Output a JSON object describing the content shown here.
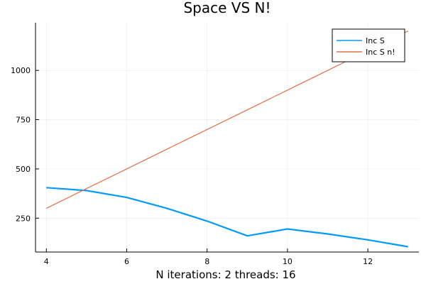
{
  "chart_data": {
    "type": "line",
    "title": "Space VS N!",
    "xlabel": "N iterations: 2 threads: 16",
    "ylabel": "",
    "x": [
      4,
      5,
      6,
      7,
      8,
      9,
      10,
      11,
      12,
      13
    ],
    "xlim": [
      3.73,
      13.27
    ],
    "ylim": [
      78,
      1242
    ],
    "xticks": [
      4,
      6,
      8,
      10,
      12
    ],
    "yticks": [
      250,
      500,
      750,
      1000
    ],
    "grid": true,
    "legend_position": "top-right",
    "series": [
      {
        "name": "Inc S",
        "color": "#009af9",
        "values": [
          405,
          390,
          355,
          300,
          235,
          160,
          195,
          170,
          140,
          105
        ]
      },
      {
        "name": "Inc S n!",
        "color": "#e26f46",
        "values": [
          300,
          400,
          500,
          600,
          700,
          800,
          900,
          1000,
          1100,
          1200
        ]
      }
    ]
  }
}
